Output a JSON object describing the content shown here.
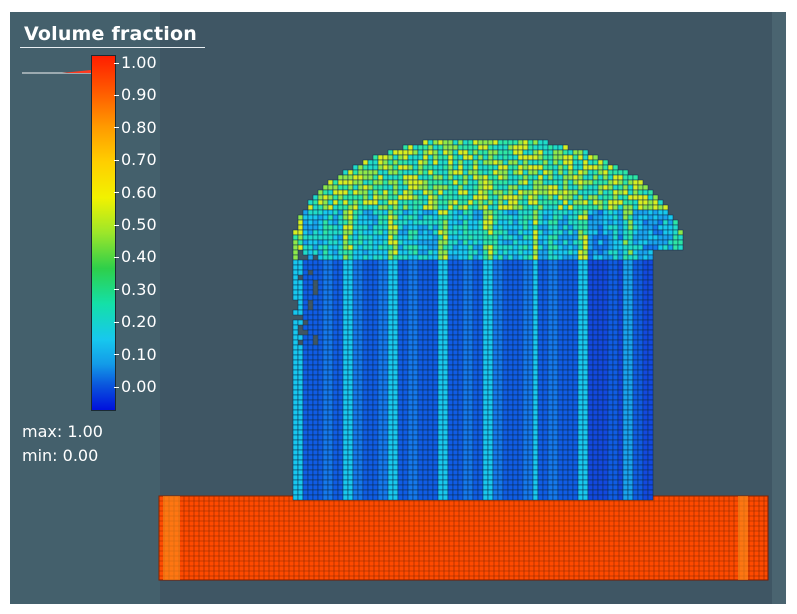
{
  "legend": {
    "title": "Volume fraction",
    "ticks": [
      "1.00",
      "0.90",
      "0.80",
      "0.70",
      "0.60",
      "0.50",
      "0.40",
      "0.30",
      "0.20",
      "0.10",
      "0.00"
    ],
    "max_label": "max: 1.00",
    "min_label": "min:  0.00"
  },
  "colors": {
    "background": "#3f5664",
    "substrate": "#ff4a00",
    "colormap_min": "#0010dd",
    "colormap_mid": "#2ecf4a",
    "colormap_max": "#ff1e00"
  }
}
